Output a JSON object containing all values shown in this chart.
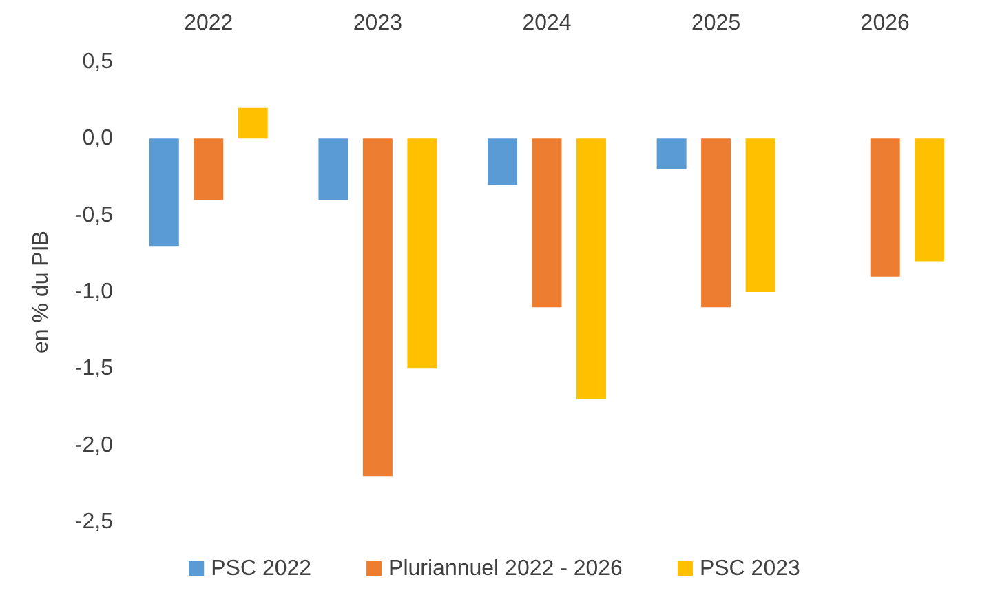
{
  "chart_data": {
    "type": "bar",
    "ylabel": "en % du PIB",
    "categories": [
      "2022",
      "2023",
      "2024",
      "2025",
      "2026"
    ],
    "series": [
      {
        "name": "PSC 2022",
        "color": "#5b9bd5",
        "values": [
          -0.7,
          -0.4,
          -0.3,
          -0.2,
          null
        ]
      },
      {
        "name": "Pluriannuel 2022 - 2026",
        "color": "#ed7d31",
        "values": [
          -0.4,
          -2.2,
          -1.1,
          -1.1,
          -0.9
        ]
      },
      {
        "name": "PSC 2023",
        "color": "#ffc000",
        "values": [
          0.2,
          -1.5,
          -1.7,
          -1.0,
          -0.8
        ]
      }
    ],
    "ylim": [
      -2.5,
      0.5
    ],
    "yticks": [
      {
        "value": -2.5,
        "label": "-2,5"
      },
      {
        "value": -2,
        "label": "-2,0"
      },
      {
        "value": -1.5,
        "label": "-1,5"
      },
      {
        "value": -1,
        "label": "-1,0"
      },
      {
        "value": -0.5,
        "label": "-0,5"
      },
      {
        "value": 0,
        "label": "0,0"
      },
      {
        "value": 0.5,
        "label": "0,5"
      }
    ],
    "grid": false,
    "legend": "bottom"
  }
}
